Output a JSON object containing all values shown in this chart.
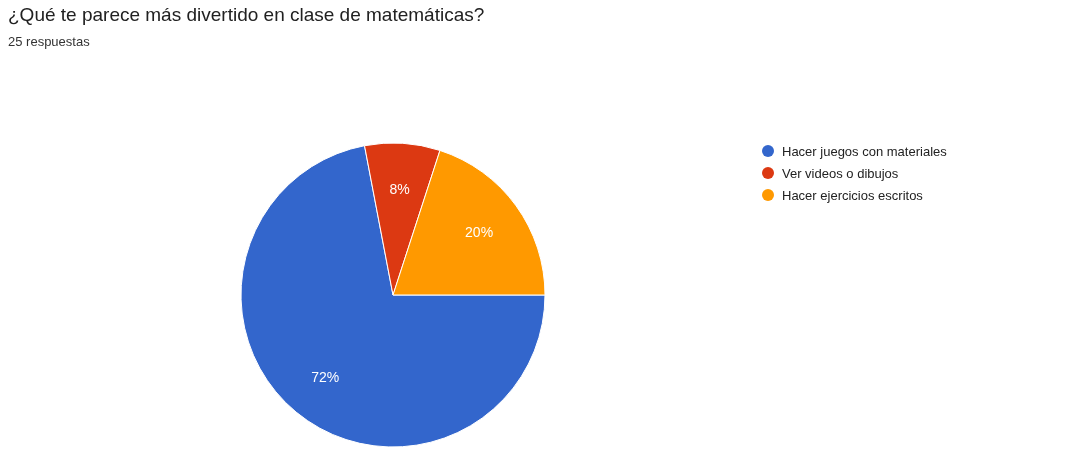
{
  "chart_data": {
    "type": "pie",
    "title": "¿Qué te parece más divertido en clase de matemáticas?",
    "subtitle": "25 respuestas",
    "categories": [
      "Hacer juegos con materiales",
      "Ver videos o dibujos",
      "Hacer ejercicios escritos"
    ],
    "values": [
      72,
      8,
      20
    ],
    "colors": [
      "#3366cc",
      "#dc3912",
      "#ff9900"
    ],
    "value_labels": [
      "72%",
      "8%",
      "20%"
    ],
    "legend": "right"
  }
}
